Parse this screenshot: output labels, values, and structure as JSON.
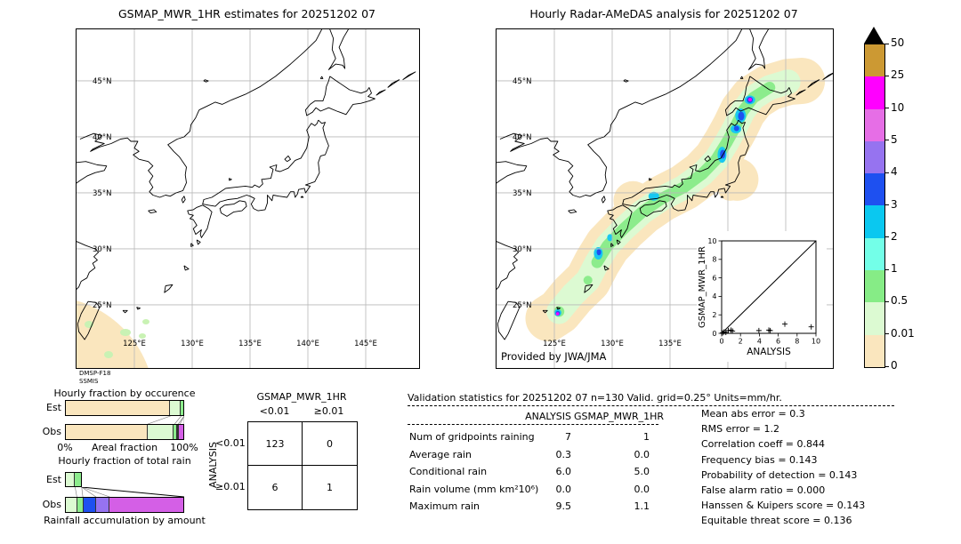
{
  "left_map": {
    "title": "GSMAP_MWR_1HR estimates for 20251202 07",
    "lat_labels": [
      "45°N",
      "40°N",
      "35°N",
      "30°N",
      "25°N"
    ],
    "lon_labels": [
      "125°E",
      "130°E",
      "135°E",
      "140°E",
      "145°E"
    ],
    "source": [
      "DMSP-F18",
      "SSMIS"
    ]
  },
  "right_map": {
    "title": "Hourly Radar-AMeDAS analysis for 20251202 07",
    "lat_labels": [
      "45°N",
      "40°N",
      "35°N",
      "30°N",
      "25°N"
    ],
    "lon_labels": [
      "125°E",
      "130°E",
      "135°E"
    ],
    "credit": "Provided by JWA/JMA"
  },
  "colorbar": {
    "labels": [
      "50",
      "25",
      "10",
      "5",
      "4",
      "3",
      "2",
      "1",
      "0.5",
      "0.01",
      "0"
    ],
    "segment_colors": [
      "#CC9933",
      "#FF00FF",
      "#E66EE6",
      "#9673F0",
      "#1E50F0",
      "#0AC8F0",
      "#73FFE8",
      "#86EC86",
      "#DCFAD2",
      "#FAE6BE"
    ],
    "overflow_color": "#000000"
  },
  "inset": {
    "xlabel": "ANALYSIS",
    "ylabel": "GSMAP_MWR_1HR",
    "tick_labels": [
      "0",
      "2",
      "4",
      "6",
      "8",
      "10"
    ],
    "tick_values": [
      0,
      2,
      4,
      6,
      8,
      10
    ],
    "points": [
      [
        0.1,
        0.05
      ],
      [
        0.25,
        0.15
      ],
      [
        0.45,
        0.1
      ],
      [
        0.7,
        0.3
      ],
      [
        1.0,
        0.35
      ],
      [
        1.15,
        0.25
      ],
      [
        3.95,
        0.3
      ],
      [
        5.0,
        0.35
      ],
      [
        5.15,
        0.3
      ],
      [
        6.7,
        1.0
      ],
      [
        9.5,
        0.7
      ]
    ]
  },
  "occurrence": {
    "title": "Hourly fraction by occurence",
    "row_labels": [
      "Est",
      "Obs"
    ],
    "xlabel": "Areal fraction",
    "xmin_label": "0%",
    "xmax_label": "100%",
    "est_segments": [
      {
        "color": "#FAE6BE",
        "pct": 88.5
      },
      {
        "color": "#DCFAD2",
        "pct": 9
      },
      {
        "color": "#8CEC8C",
        "pct": 2.5
      }
    ],
    "obs_segments": [
      {
        "color": "#FAE6BE",
        "pct": 69.5
      },
      {
        "color": "#DCFAD2",
        "pct": 22.5
      },
      {
        "color": "#8CEC8C",
        "pct": 3
      },
      {
        "color": "#1E50F0",
        "pct": 0.8
      },
      {
        "color": "#1A1A8C",
        "pct": 0.7
      },
      {
        "color": "#D45FE6",
        "pct": 3.5
      }
    ]
  },
  "total_rain": {
    "title": "Hourly fraction of total rain",
    "row_labels": [
      "Est",
      "Obs"
    ],
    "footer": "Rainfall accumulation by amount",
    "est_segments": [
      {
        "color": "#DCFAD2",
        "pct": 8.5
      },
      {
        "color": "#8CEC8C",
        "pct": 5.5
      }
    ],
    "obs_segments": [
      {
        "color": "#DCFAD2",
        "pct": 10
      },
      {
        "color": "#8CEC8C",
        "pct": 5
      },
      {
        "color": "#1E50F0",
        "pct": 11
      },
      {
        "color": "#9673F0",
        "pct": 11.5
      },
      {
        "color": "#D45FE6",
        "pct": 62.5
      }
    ]
  },
  "contingency": {
    "title": "GSMAP_MWR_1HR",
    "col_labels": [
      "<0.01",
      "≥0.01"
    ],
    "row_axis_label": "ANALYSIS",
    "row_labels": [
      "<0.01",
      "≥0.01"
    ],
    "values": [
      [
        "123",
        "0"
      ],
      [
        "6",
        "1"
      ]
    ]
  },
  "stats": {
    "title": "Validation statistics for 20251202 07  n=130 Valid. grid=0.25° Units=mm/hr.",
    "col_headers": [
      "ANALYSIS",
      "GSMAP_MWR_1HR"
    ],
    "rows": [
      {
        "label": "Num of gridpoints raining",
        "analysis": "7",
        "gsmap": "1"
      },
      {
        "label": "Average rain",
        "analysis": "0.3",
        "gsmap": "0.0"
      },
      {
        "label": "Conditional rain",
        "analysis": "6.0",
        "gsmap": "5.0"
      },
      {
        "label": "Rain volume (mm km²10⁶)",
        "analysis": "0.0",
        "gsmap": "0.0"
      },
      {
        "label": "Maximum rain",
        "analysis": "9.5",
        "gsmap": "1.1"
      }
    ],
    "metrics": [
      {
        "label": "Mean abs error",
        "value": "0.3"
      },
      {
        "label": "RMS error",
        "value": "1.2"
      },
      {
        "label": "Correlation coeff",
        "value": "0.844"
      },
      {
        "label": "Frequency bias",
        "value": "0.143"
      },
      {
        "label": "Probability of detection",
        "value": "0.143"
      },
      {
        "label": "False alarm ratio",
        "value": "0.000"
      },
      {
        "label": "Hanssen & Kuipers score",
        "value": "0.143"
      },
      {
        "label": "Equitable threat score",
        "value": "0.136"
      }
    ]
  },
  "chart_data": [
    {
      "type": "heatmap",
      "title": "GSMAP_MWR_1HR estimates for 20251202 07",
      "units": "mm/hr",
      "lon_range": [
        120,
        149.6
      ],
      "lat_range": [
        19.4,
        49.6
      ],
      "source": "DMSP-F18 SSMIS",
      "notes": "Satellite swath edge covers only the far southwest corner near Taiwan with 0-0.01 mm/hr background and a few 0.01-0.5 mm/hr specks; remainder of domain has no data"
    },
    {
      "type": "heatmap",
      "title": "Hourly Radar-AMeDAS analysis for 20251202 07",
      "units": "mm/hr",
      "lon_range": [
        120,
        149.1
      ],
      "lat_range": [
        19.4,
        49.6
      ],
      "credit": "Provided by JWA/JMA",
      "notes": "SW-NE precipitation band from near Taiwan (125E,24N) along the Ryukyus and Japan to eastern Hokkaido (146E,45N); band 0.01-1 mm/hr with embedded 2-10 mm/hr cores and isolated >10 mm/hr pixels near 141.9E/43.3N and 125.3E/24.3N"
    },
    {
      "type": "colorbar",
      "levels": [
        0,
        0.01,
        0.5,
        1,
        2,
        3,
        4,
        5,
        10,
        25,
        50
      ],
      "colors_bottom_to_top": [
        "#FAE6BE",
        "#DCFAD2",
        "#86EC86",
        "#73FFE8",
        "#0AC8F0",
        "#1E50F0",
        "#9673F0",
        "#E66EE6",
        "#FF00FF",
        "#CC9933"
      ],
      "overflow_color": "#000000"
    },
    {
      "type": "scatter",
      "xlabel": "ANALYSIS",
      "ylabel": "GSMAP_MWR_1HR",
      "xlim": [
        0,
        10
      ],
      "ylim": [
        0,
        10
      ],
      "diagonal": true,
      "points": [
        [
          0.1,
          0.05
        ],
        [
          0.25,
          0.15
        ],
        [
          0.45,
          0.1
        ],
        [
          0.7,
          0.3
        ],
        [
          1.0,
          0.35
        ],
        [
          1.15,
          0.25
        ],
        [
          3.95,
          0.3
        ],
        [
          5.0,
          0.35
        ],
        [
          5.15,
          0.3
        ],
        [
          6.7,
          1.0
        ],
        [
          9.5,
          0.7
        ]
      ]
    },
    {
      "type": "bar",
      "title": "Hourly fraction by occurence",
      "xlabel": "Areal fraction",
      "categories": [
        "Est",
        "Obs"
      ],
      "series": [
        {
          "name": "Est",
          "segments_pct": [
            88.5,
            9,
            2.5
          ]
        },
        {
          "name": "Obs",
          "segments_pct": [
            69.5,
            22.5,
            3,
            0.8,
            0.7,
            3.5
          ]
        }
      ]
    },
    {
      "type": "bar",
      "title": "Hourly fraction of total rain",
      "xlabel": "Rainfall accumulation by amount",
      "categories": [
        "Est",
        "Obs"
      ],
      "series": [
        {
          "name": "Est",
          "segments_pct": [
            8.5,
            5.5
          ]
        },
        {
          "name": "Obs",
          "segments_pct": [
            10,
            5,
            11,
            11.5,
            62.5
          ]
        }
      ]
    },
    {
      "type": "table",
      "title": "GSMAP_MWR_1HR vs ANALYSIS contingency",
      "columns": [
        "<0.01",
        "≥0.01"
      ],
      "rows": [
        "<0.01",
        "≥0.01"
      ],
      "matrix": [
        [
          123,
          0
        ],
        [
          6,
          1
        ]
      ]
    },
    {
      "type": "table",
      "title": "Validation statistics for 20251202 07 n=130 Valid. grid=0.25° Units=mm/hr.",
      "columns": [
        "ANALYSIS",
        "GSMAP_MWR_1HR"
      ],
      "rows": [
        [
          "Num of gridpoints raining",
          7,
          1
        ],
        [
          "Average rain",
          0.3,
          0.0
        ],
        [
          "Conditional rain",
          6.0,
          5.0
        ],
        [
          "Rain volume (mm km²10⁶)",
          0.0,
          0.0
        ],
        [
          "Maximum rain",
          9.5,
          1.1
        ]
      ],
      "metrics": {
        "Mean abs error": 0.3,
        "RMS error": 1.2,
        "Correlation coeff": 0.844,
        "Frequency bias": 0.143,
        "Probability of detection": 0.143,
        "False alarm ratio": 0.0,
        "Hanssen & Kuipers score": 0.143,
        "Equitable threat score": 0.136
      }
    }
  ]
}
